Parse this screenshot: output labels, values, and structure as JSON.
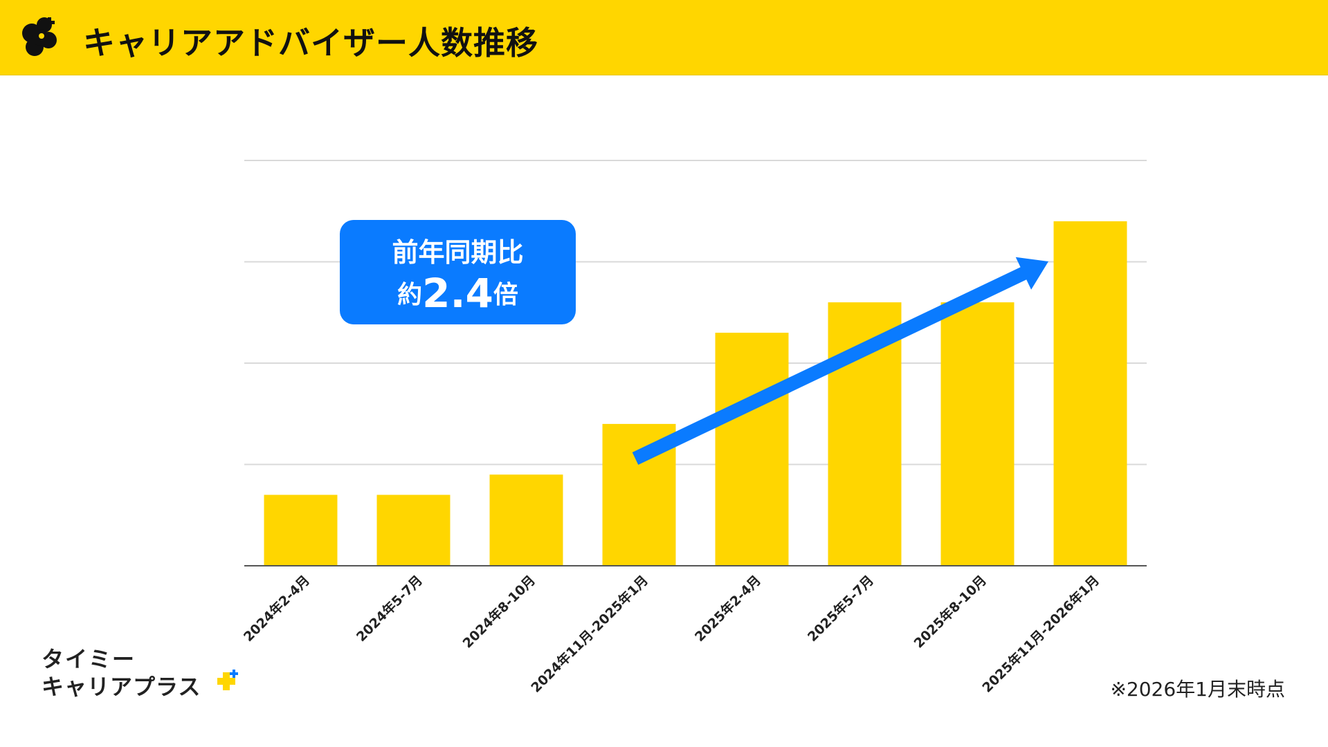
{
  "header": {
    "title": "キャリアアドバイザー人数推移",
    "logo_icon": "four-leaf-clover-icon"
  },
  "callout": {
    "line1": "前年同期比",
    "prefix": "約",
    "value": "2.4",
    "suffix": "倍"
  },
  "brand": {
    "line1": "タイミー",
    "line2": "キャリアプラス",
    "plus_icon": "plus-sparkle-icon"
  },
  "footnote": "※2026年1月末時点",
  "colors": {
    "header_bg": "#FFD600",
    "bar": "#FFD600",
    "callout_bg": "#0A7BFF",
    "arrow": "#0A7BFF",
    "grid": "#d9d9d9",
    "axis": "#555555"
  },
  "chart_data": {
    "type": "bar",
    "title": "キャリアアドバイザー人数推移",
    "xlabel": "",
    "ylabel": "",
    "ylim": [
      0,
      100
    ],
    "gridlines": [
      0,
      25,
      50,
      75,
      100
    ],
    "y_tick_labels_shown": false,
    "categories": [
      "2024年2-4月",
      "2024年5-7月",
      "2024年8-10月",
      "2024年11月-2025年1月",
      "2025年2-4月",
      "2025年5-7月",
      "2025年8-10月",
      "2025年11月-2026年1月"
    ],
    "values": [
      17.5,
      17.5,
      22.5,
      35,
      57.5,
      65,
      65,
      85
    ],
    "annotation": "前年同期比 約2.4倍"
  }
}
